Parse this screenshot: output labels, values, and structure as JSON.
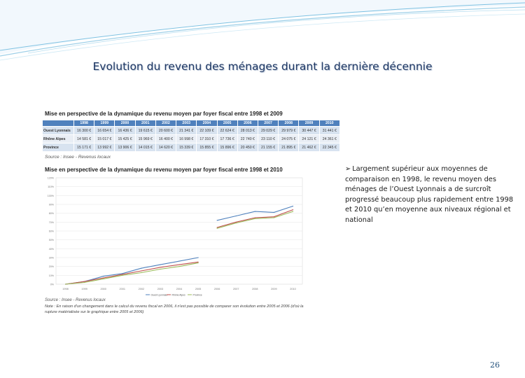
{
  "slide": {
    "title": "Evolution du revenu des ménages durant la dernière décennie",
    "page_number": "26",
    "bullet_arrow": "➢",
    "bullet_text": "Largement supérieur aux moyennes de comparaison en 1998, le revenu moyen des ménages de l’Ouest Lyonnais a de surcroît progressé beaucoup plus rapidement entre 1998 et 2010 qu’en moyenne aux niveaux régional et national"
  },
  "table": {
    "title": "Mise en perspective de la dynamique du revenu moyen par foyer fiscal entre 1998 et 2009",
    "headers": [
      "",
      "1998",
      "1999",
      "2000",
      "2001",
      "2002",
      "2003",
      "2004",
      "2005",
      "2006",
      "2007",
      "2008",
      "2009",
      "2010"
    ],
    "rows": [
      {
        "label": "Ouest Lyonnais",
        "values": [
          "16 300 €",
          "16 654 €",
          "16 436 €",
          "19 615 €",
          "20 600 €",
          "21 341 €",
          "22 109 €",
          "22 624 €",
          "28 013 €",
          "29 029 €",
          "29 979 €",
          "30 447 €",
          "31 441 €"
        ]
      },
      {
        "label": "Rhône Alpes",
        "values": [
          "14 581 €",
          "15 017 €",
          "15 425 €",
          "15 969 €",
          "16 400 €",
          "16 998 €",
          "17 310 €",
          "17 736 €",
          "22 740 €",
          "23 110 €",
          "24 075 €",
          "24 121 €",
          "24 361 €"
        ]
      },
      {
        "label": "Province",
        "values": [
          "15 171 €",
          "13 992 €",
          "13 906 €",
          "14 015 €",
          "14 620 €",
          "15 339 €",
          "15 855 €",
          "15 896 €",
          "20 450 €",
          "21 155 €",
          "21 895 €",
          "21 462 €",
          "22 345 €"
        ]
      }
    ],
    "source": "Source : Insee - Revenus locaux"
  },
  "chart_data": {
    "type": "line",
    "title": "Mise en perspective de la dynamique du revenu moyen par foyer fiscal entre 1998 et 2010",
    "categories": [
      "1998",
      "1999",
      "2000",
      "2001",
      "2002",
      "2003",
      "2004",
      "2005",
      "2006",
      "2007",
      "2008",
      "2009",
      "2010"
    ],
    "y_ticks": [
      "0%",
      "10%",
      "20%",
      "30%",
      "40%",
      "50%",
      "60%",
      "70%",
      "80%",
      "90%",
      "100%",
      "110%",
      "120%"
    ],
    "ylim": [
      0,
      120
    ],
    "series": [
      {
        "name": "Ouest Lyonnais",
        "color": "#4f81bd",
        "values": [
          0,
          3,
          9,
          12,
          18,
          22,
          26,
          30,
          null,
          null,
          null,
          null,
          null
        ]
      },
      {
        "name": "Rhône Alpes",
        "color": "#c0504d",
        "values": [
          0,
          3,
          7,
          11,
          15,
          19,
          22,
          25,
          null,
          null,
          null,
          null,
          null
        ]
      },
      {
        "name": "Province",
        "color": "#9bbb59",
        "values": [
          0,
          2,
          6,
          10,
          13,
          17,
          20,
          24,
          null,
          null,
          null,
          null,
          null
        ]
      },
      {
        "name": "Ouest Lyonnais",
        "color": "#4f81bd",
        "values": [
          null,
          null,
          null,
          null,
          null,
          null,
          null,
          null,
          72,
          77,
          82,
          81,
          88
        ]
      },
      {
        "name": "Rhône Alpes",
        "color": "#c0504d",
        "values": [
          null,
          null,
          null,
          null,
          null,
          null,
          null,
          null,
          64,
          70,
          75,
          76,
          84
        ]
      },
      {
        "name": "Province",
        "color": "#9bbb59",
        "values": [
          null,
          null,
          null,
          null,
          null,
          null,
          null,
          null,
          63,
          69,
          74,
          75,
          82
        ]
      }
    ],
    "legend": [
      "Ouest Lyonnais",
      "Rhône Alpes",
      "Province"
    ],
    "source": "Source : Insee - Revenus locaux",
    "note": "Note : En raison d'un changement dans le calcul du revenu fiscal en 2006, il n'est pas possible de comparer son évolution entre 2005 et 2006 (d'où la rupture matérialisée sur le graphique entre 2005 et 2006)"
  }
}
